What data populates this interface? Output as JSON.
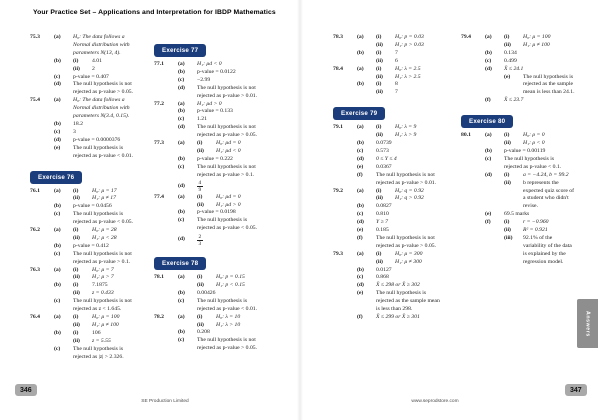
{
  "header": {
    "title": "Your Practice Set – Applications and Interpretation for IBDP Mathematics"
  },
  "footer": {
    "left_page_number": "346",
    "right_page_number": "347",
    "publisher": "SE Production Limited",
    "website": "www.seprodstore.com"
  },
  "side_tab": {
    "label": "Answers"
  },
  "colors": {
    "badge_navy": "#1c3d7c",
    "page_num_bg": "#a9a9a9",
    "tab_grey": "#8e8e8e"
  },
  "columns": [
    {
      "rows": [
        {
          "n": "75.3",
          "l": "(a)",
          "t": "H₀: The data follows a",
          "s": "m"
        },
        {
          "t": "Normal distribution with",
          "s": "m"
        },
        {
          "t": "parameters N(13, 4).",
          "s": "m"
        },
        {
          "l": "(b)",
          "r": "(i)",
          "t": "4.01"
        },
        {
          "r": "(ii)",
          "t": "2"
        },
        {
          "l": "(c)",
          "t": "p-value = 0.407"
        },
        {
          "l": "(d)",
          "t": "The null hypothesis is not"
        },
        {
          "t": "rejected as p-value > 0.05."
        },
        {
          "n": "75.4",
          "l": "(a)",
          "t": "H₀: The data follows a",
          "s": "m"
        },
        {
          "t": "Normal distribution with",
          "s": "m"
        },
        {
          "t": "parameters N(3.4, 0.15).",
          "s": "m"
        },
        {
          "l": "(b)",
          "t": "18.2"
        },
        {
          "l": "(c)",
          "t": "3"
        },
        {
          "l": "(d)",
          "t": "p-value = 0.0000376"
        },
        {
          "l": "(e)",
          "t": "The null hypothesis is"
        },
        {
          "t": "rejected as p-value < 0.01."
        },
        {
          "b": "Exercise 76"
        },
        {
          "n": "76.1",
          "l": "(a)",
          "r": "(i)",
          "t": "H₀: μ = 17",
          "s": "m"
        },
        {
          "r": "(ii)",
          "t": "H₁: μ ≠ 17",
          "s": "m"
        },
        {
          "l": "(b)",
          "t": "p-value = 0.0456"
        },
        {
          "l": "(c)",
          "t": "The null hypothesis is"
        },
        {
          "t": "rejected as p-value < 0.05."
        },
        {
          "n": "76.2",
          "l": "(a)",
          "r": "(i)",
          "t": "H₀: μ = 28",
          "s": "m"
        },
        {
          "r": "(ii)",
          "t": "H₁: μ < 28",
          "s": "m"
        },
        {
          "l": "(b)",
          "t": "p-value = 0.412"
        },
        {
          "l": "(c)",
          "t": "The null hypothesis is not"
        },
        {
          "t": "rejected as p-value > 0.1."
        },
        {
          "n": "76.3",
          "l": "(a)",
          "r": "(i)",
          "t": "H₀: μ = 7",
          "s": "m"
        },
        {
          "r": "(ii)",
          "t": "H₁: μ > 7",
          "s": "m"
        },
        {
          "l": "(b)",
          "r": "(i)",
          "t": "7.1875"
        },
        {
          "r": "(ii)",
          "t": "z = 0.433",
          "s": "m"
        },
        {
          "l": "(c)",
          "t": "The null hypothesis is not"
        },
        {
          "t": "rejected as z < 1.645."
        },
        {
          "n": "76.4",
          "l": "(a)",
          "r": "(i)",
          "t": "H₀: μ = 100",
          "s": "m"
        },
        {
          "r": "(ii)",
          "t": "H₁: μ ≠ 100",
          "s": "m"
        },
        {
          "l": "(b)",
          "r": "(i)",
          "t": "106"
        },
        {
          "r": "(ii)",
          "t": "z = 5.55",
          "s": "m"
        },
        {
          "l": "(c)",
          "t": "The null hypothesis is"
        },
        {
          "t": "rejected as |z| > 2.326."
        }
      ]
    },
    {
      "rows": [
        {
          "b": "Exercise 77"
        },
        {
          "n": "77.1",
          "l": "(a)",
          "t": "H₁: μd < 0",
          "s": "m"
        },
        {
          "l": "(b)",
          "t": "p-value = 0.0122"
        },
        {
          "l": "(c)",
          "t": "−2.99"
        },
        {
          "l": "(d)",
          "t": "The null hypothesis is not"
        },
        {
          "t": "rejected as p-value > 0.01."
        },
        {
          "n": "77.2",
          "l": "(a)",
          "t": "H₁: μd > 0",
          "s": "m"
        },
        {
          "l": "(b)",
          "t": "p-value = 0.133"
        },
        {
          "l": "(c)",
          "t": "1.21"
        },
        {
          "l": "(d)",
          "t": "The null hypothesis is not"
        },
        {
          "t": "rejected as p-value > 0.05."
        },
        {
          "n": "77.3",
          "l": "(a)",
          "r": "(i)",
          "t": "H₀: μd = 0",
          "s": "m"
        },
        {
          "r": "(ii)",
          "t": "H₁: μd < 0",
          "s": "m"
        },
        {
          "l": "(b)",
          "t": "p-value = 0.222"
        },
        {
          "l": "(c)",
          "t": "The null hypothesis is not"
        },
        {
          "t": "rejected as p-value > 0.1."
        },
        {
          "l": "(d)",
          "frac": [
            "4",
            "9"
          ]
        },
        {
          "n": "77.4",
          "l": "(a)",
          "r": "(i)",
          "t": "H₀: μd = 0",
          "s": "m"
        },
        {
          "r": "(ii)",
          "t": "H₁: μd > 0",
          "s": "m"
        },
        {
          "l": "(b)",
          "t": "p-value = 0.0198"
        },
        {
          "l": "(c)",
          "t": "The null hypothesis is"
        },
        {
          "t": "rejected as p-value < 0.05."
        },
        {
          "l": "(d)",
          "frac": [
            "2",
            "3"
          ]
        },
        {
          "b": "Exercise 78"
        },
        {
          "n": "78.1",
          "l": "(a)",
          "r": "(i)",
          "t": "H₀: p = 0.15",
          "s": "m"
        },
        {
          "r": "(ii)",
          "t": "H₁: p < 0.15",
          "s": "m"
        },
        {
          "l": "(b)",
          "t": "0.00426"
        },
        {
          "l": "(c)",
          "t": "The null hypothesis is"
        },
        {
          "t": "rejected as p-value < 0.01."
        },
        {
          "n": "78.2",
          "l": "(a)",
          "r": "(i)",
          "t": "H₀: λ = 10",
          "s": "m"
        },
        {
          "r": "(ii)",
          "t": "H₁: λ > 10",
          "s": "m"
        },
        {
          "l": "(b)",
          "t": "0.208"
        },
        {
          "l": "(c)",
          "t": "The null hypothesis is not"
        },
        {
          "t": "rejected as p-value > 0.05."
        }
      ]
    },
    {
      "rows": [
        {
          "n": "78.3",
          "l": "(a)",
          "r": "(i)",
          "t": "H₀: p = 0.03",
          "s": "m"
        },
        {
          "r": "(ii)",
          "t": "H₁: p > 0.03",
          "s": "m"
        },
        {
          "l": "(b)",
          "r": "(i)",
          "t": "7"
        },
        {
          "r": "(ii)",
          "t": "6"
        },
        {
          "n": "78.4",
          "l": "(a)",
          "r": "(i)",
          "t": "H₀: λ = 2.5",
          "s": "m"
        },
        {
          "r": "(ii)",
          "t": "H₁: λ > 2.5",
          "s": "m"
        },
        {
          "l": "(b)",
          "r": "(i)",
          "t": "8"
        },
        {
          "r": "(ii)",
          "t": "7"
        },
        {
          "b": "Exercise 79"
        },
        {
          "n": "79.1",
          "l": "(a)",
          "r": "(i)",
          "t": "H₀: λ = 9",
          "s": "m"
        },
        {
          "r": "(ii)",
          "t": "H₁: λ > 9",
          "s": "m"
        },
        {
          "l": "(b)",
          "t": "0.0739"
        },
        {
          "l": "(c)",
          "t": "0.573"
        },
        {
          "l": "(d)",
          "t": "0 ≤ Y ≤ 4",
          "s": "m"
        },
        {
          "l": "(e)",
          "t": "0.0367"
        },
        {
          "l": "(f)",
          "t": "The null hypothesis is not"
        },
        {
          "t": "rejected as p-value > 0.01."
        },
        {
          "n": "79.2",
          "l": "(a)",
          "r": "(i)",
          "t": "H₀: q = 0.92",
          "s": "m"
        },
        {
          "r": "(ii)",
          "t": "H₁: q > 0.92",
          "s": "m"
        },
        {
          "l": "(b)",
          "t": "0.0827"
        },
        {
          "l": "(c)",
          "t": "0.810"
        },
        {
          "l": "(d)",
          "t": "Y ≥ 7",
          "s": "m"
        },
        {
          "l": "(e)",
          "t": "0.185"
        },
        {
          "l": "(f)",
          "t": "The null hypothesis is not"
        },
        {
          "t": "rejected as p-value > 0.05."
        },
        {
          "n": "79.3",
          "l": "(a)",
          "r": "(i)",
          "t": "H₀: μ = 300",
          "s": "m"
        },
        {
          "r": "(ii)",
          "t": "H₁: μ ≠ 300",
          "s": "m"
        },
        {
          "l": "(b)",
          "t": "0.0127"
        },
        {
          "l": "(c)",
          "t": "0.868"
        },
        {
          "l": "(d)",
          "t": "X̄ ≤ 298 or X̄ ≥ 302",
          "s": "m"
        },
        {
          "l": "(e)",
          "t": "The null hypothesis is"
        },
        {
          "t": "rejected as the sample mean"
        },
        {
          "t": "is less than 298."
        },
        {
          "l": "(f)",
          "t": "X̄ ≤ 299 or X̄ ≥ 301",
          "s": "m"
        }
      ]
    },
    {
      "rows": [
        {
          "n": "79.4",
          "l": "(a)",
          "r": "(i)",
          "t": "H₀: μ = 100",
          "s": "m"
        },
        {
          "r": "(ii)",
          "t": "H₁: μ ≠ 100",
          "s": "m"
        },
        {
          "l": "(b)",
          "t": "0.134"
        },
        {
          "l": "(c)",
          "t": "0.499"
        },
        {
          "l": "(d)",
          "t": "X̄ ≤ 24.1",
          "s": "m"
        },
        {
          "r": "(e)",
          "t": "The null hypothesis is"
        },
        {
          "t": "rejected as the sample",
          "lv": 2
        },
        {
          "t": "mean is less than 24.1.",
          "lv": 2
        },
        {
          "l": "(f)",
          "t": "X̄ ≤ 23.7",
          "s": "m"
        },
        {
          "b": "Exercise 80"
        },
        {
          "n": "80.1",
          "l": "(a)",
          "r": "(i)",
          "t": "H₀: ρ = 0",
          "s": "m"
        },
        {
          "r": "(ii)",
          "t": "H₁: ρ < 0",
          "s": "m"
        },
        {
          "l": "(b)",
          "t": "p-value = 0.00119"
        },
        {
          "l": "(c)",
          "t": "The null hypothesis is"
        },
        {
          "t": "rejected as p-value < 0.1."
        },
        {
          "l": "(d)",
          "r": "(i)",
          "t": "a = −4.24, b = 99.2",
          "s": "m"
        },
        {
          "r": "(ii)",
          "t": "b represents the"
        },
        {
          "t": "expected quiz score of",
          "lv": 2
        },
        {
          "t": "a student who didn't",
          "lv": 2
        },
        {
          "t": "revise.",
          "lv": 2
        },
        {
          "l": "(e)",
          "t": "69.5 marks"
        },
        {
          "l": "(f)",
          "r": "(i)",
          "t": "r = −0.960",
          "s": "m"
        },
        {
          "r": "(ii)",
          "t": "R² = 0.921",
          "s": "m"
        },
        {
          "r": "(iii)",
          "t": "92.1% of the"
        },
        {
          "t": "variability of the data",
          "lv": 2
        },
        {
          "t": "is explained by the",
          "lv": 2
        },
        {
          "t": "regression model.",
          "lv": 2
        }
      ]
    }
  ]
}
